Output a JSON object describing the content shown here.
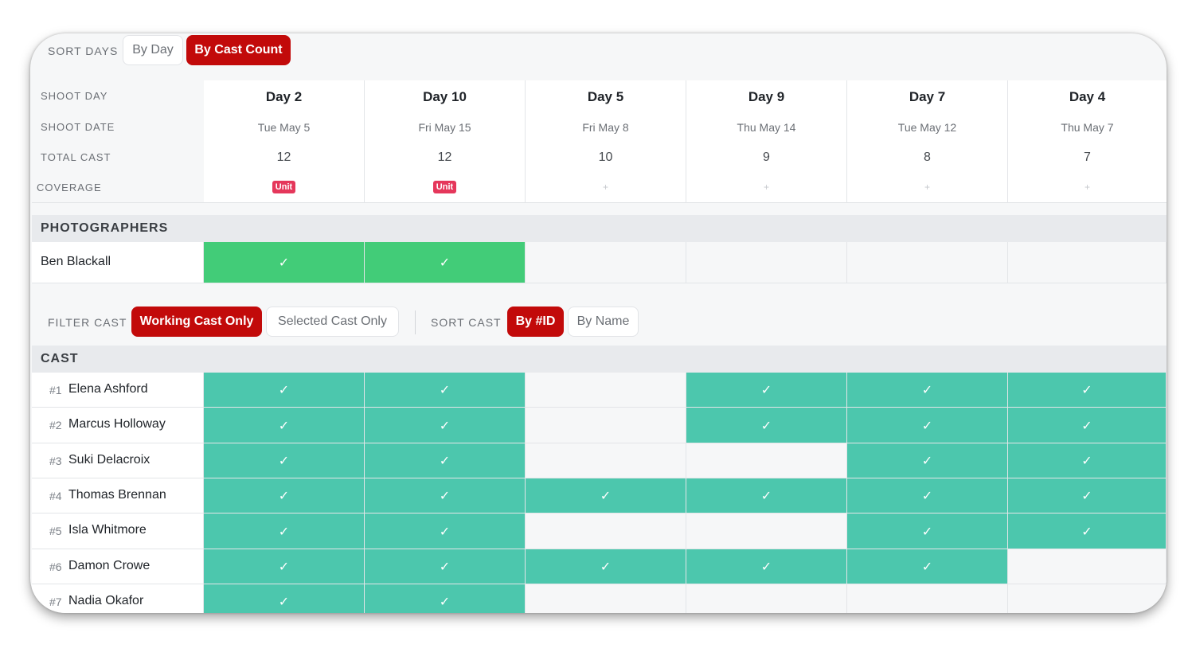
{
  "sort_days": {
    "label": "SORT DAYS",
    "options": [
      "By Day",
      "By Cast Count"
    ],
    "selected": "By Cast Count"
  },
  "header_labels": {
    "shoot_day": "SHOOT DAY",
    "shoot_date": "SHOOT DATE",
    "total_cast": "TOTAL CAST",
    "coverage": "COVERAGE"
  },
  "days": [
    {
      "name": "Day 2",
      "date": "Tue May 5",
      "total_cast": "12",
      "coverage": "Unit"
    },
    {
      "name": "Day 10",
      "date": "Fri May 15",
      "total_cast": "12",
      "coverage": "Unit"
    },
    {
      "name": "Day 5",
      "date": "Fri May 8",
      "total_cast": "10",
      "coverage": "+"
    },
    {
      "name": "Day 9",
      "date": "Thu May 14",
      "total_cast": "9",
      "coverage": "+"
    },
    {
      "name": "Day 7",
      "date": "Tue May 12",
      "total_cast": "8",
      "coverage": "+"
    },
    {
      "name": "Day 4",
      "date": "Thu May 7",
      "total_cast": "7",
      "coverage": "+"
    }
  ],
  "photographers": {
    "title": "PHOTOGRAPHERS",
    "rows": [
      {
        "name": "Ben Blackall",
        "days": [
          true,
          true,
          false,
          false,
          false,
          false
        ]
      }
    ]
  },
  "filter_cast": {
    "label": "FILTER CAST",
    "options": [
      "Working Cast Only",
      "Selected Cast Only"
    ],
    "selected": "Working Cast Only"
  },
  "sort_cast": {
    "label": "SORT CAST",
    "options": [
      "By #ID",
      "By Name"
    ],
    "selected": "By #ID"
  },
  "cast": {
    "title": "CAST",
    "check": "✓",
    "rows": [
      {
        "id": "#1",
        "name": "Elena Ashford",
        "days": [
          true,
          true,
          false,
          true,
          true,
          true
        ]
      },
      {
        "id": "#2",
        "name": "Marcus Holloway",
        "days": [
          true,
          true,
          false,
          true,
          true,
          true
        ]
      },
      {
        "id": "#3",
        "name": "Suki Delacroix",
        "days": [
          true,
          true,
          false,
          false,
          true,
          true
        ]
      },
      {
        "id": "#4",
        "name": "Thomas Brennan",
        "days": [
          true,
          true,
          true,
          true,
          true,
          true
        ]
      },
      {
        "id": "#5",
        "name": "Isla Whitmore",
        "days": [
          true,
          true,
          false,
          false,
          true,
          true
        ]
      },
      {
        "id": "#6",
        "name": "Damon Crowe",
        "days": [
          true,
          true,
          true,
          true,
          true,
          false
        ]
      },
      {
        "id": "#7",
        "name": "Nadia Okafor",
        "days": [
          true,
          true,
          false,
          false,
          false,
          false
        ]
      }
    ]
  },
  "colors": {
    "accent": "#c20a0a",
    "cast_on": "#4cc7ad",
    "photo_on": "#42cc78",
    "badge": "#e5375b"
  }
}
